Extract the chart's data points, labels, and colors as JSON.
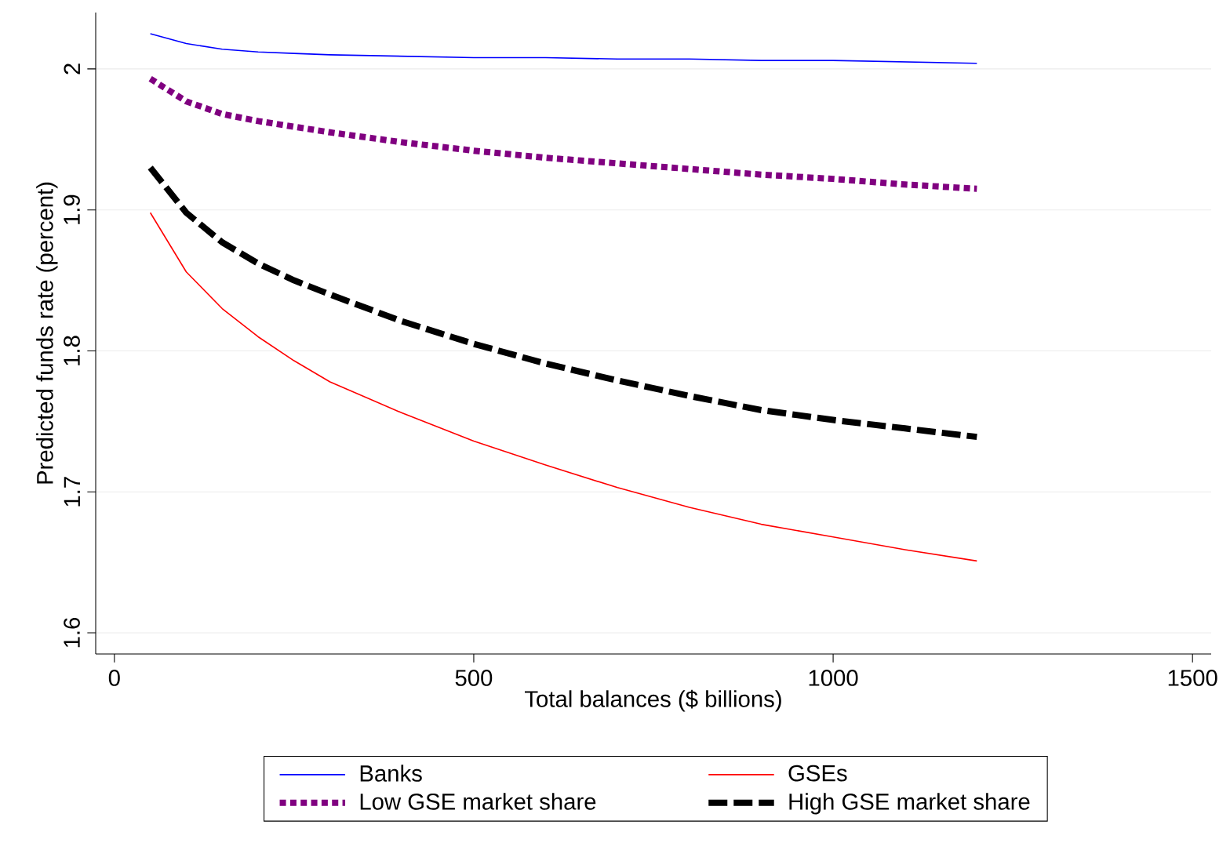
{
  "chart_data": {
    "type": "line",
    "xlabel": "Total balances ($ billions)",
    "ylabel": "Predicted funds rate (percent)",
    "x": [
      50,
      100,
      150,
      200,
      250,
      300,
      400,
      500,
      600,
      700,
      800,
      900,
      1000,
      1100,
      1200
    ],
    "series": [
      {
        "name": "Banks",
        "color": "#0000ff",
        "line_style": "solid",
        "values": [
          2.025,
          2.018,
          2.014,
          2.012,
          2.011,
          2.01,
          2.009,
          2.008,
          2.008,
          2.007,
          2.007,
          2.006,
          2.006,
          2.005,
          2.004
        ]
      },
      {
        "name": "GSEs",
        "color": "#ff0000",
        "line_style": "solid",
        "values": [
          1.898,
          1.856,
          1.83,
          1.81,
          1.793,
          1.778,
          1.756,
          1.736,
          1.719,
          1.703,
          1.689,
          1.677,
          1.668,
          1.659,
          1.651
        ]
      },
      {
        "name": "Low GSE market share",
        "color": "#800080",
        "line_style": "dotted",
        "values": [
          1.993,
          1.977,
          1.968,
          1.963,
          1.959,
          1.955,
          1.948,
          1.942,
          1.937,
          1.933,
          1.929,
          1.925,
          1.922,
          1.918,
          1.915
        ]
      },
      {
        "name": "High GSE market share",
        "color": "#000000",
        "line_style": "dashed",
        "values": [
          1.93,
          1.898,
          1.877,
          1.862,
          1.85,
          1.84,
          1.821,
          1.805,
          1.791,
          1.779,
          1.768,
          1.758,
          1.751,
          1.745,
          1.739
        ]
      }
    ],
    "xlim": [
      -26,
      1526
    ],
    "ylim": [
      1.585,
      2.04
    ],
    "xticks": [
      0,
      500,
      1000,
      1500
    ],
    "yticks": [
      1.6,
      1.7,
      1.8,
      1.9,
      2
    ],
    "grid": "y",
    "legend": "bottom",
    "marker": "none"
  }
}
